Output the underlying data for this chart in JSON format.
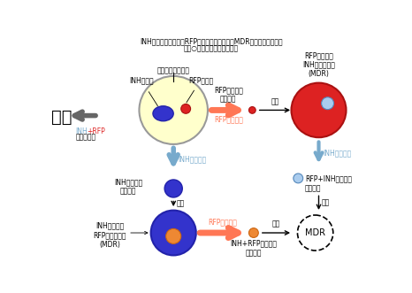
{
  "title_line1": "INH：イソシアニド　RFP：リファンビシン　MDR：多剤耗性結核菌",
  "title_line2": "注　○の大きさは菌量を表す",
  "label_cavity": "空洞中の結核菌菌",
  "label_INH_res": "INH耐性菌",
  "label_RFP_res": "RFP耐性菌",
  "label_cure": "治癒",
  "label_combo": "の併用投与",
  "label_RFP_only1": "RFPのみ投与",
  "label_RFP_survive1": "RFP耐性菌が\n生き残る",
  "label_proliferate": "増殖",
  "label_RFP_MDR": "RFP耐性菌が\nINH耐性を獲得\n(MDR)",
  "label_INH_only_left": "INHのみ投与",
  "label_INH_only_right": "INHのみ投与",
  "label_INH_survive": "INH耐性菌が\n生き残る",
  "label_RFP_INH_survive": "RFP+INH耐性菌が\n生き残る",
  "label_INH_gets_RFP": "INH耐性菌が\nRFP耐性を獲得\n(MDR)",
  "label_RFP_only2": "RFPのみ投与",
  "label_INH_RFP_survive": "INH+RFP耐性菌が\n生き残る",
  "label_MDR": "MDR",
  "bg_color": "#ffffff",
  "yellow_fill": "#ffffcc",
  "red_fill": "#dd2222",
  "blue_fill": "#3333cc",
  "orange_fill": "#ee8833",
  "lightblue_fill": "#aaccee",
  "salmon_arrow": "#ff7755",
  "lightblue_arrow": "#77aacc",
  "gray_arrow": "#666666"
}
